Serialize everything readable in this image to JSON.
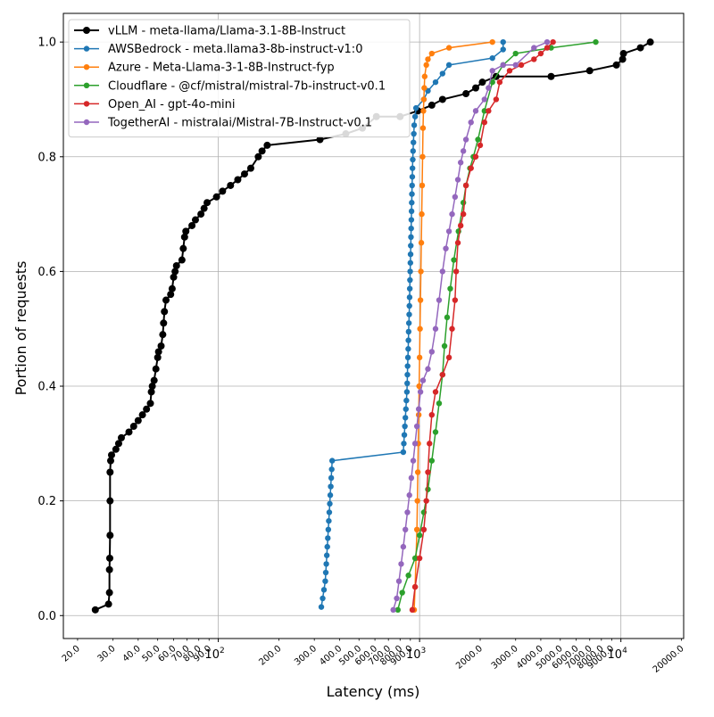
{
  "chart_data": {
    "type": "line",
    "title": "",
    "xlabel": "Latency (ms)",
    "ylabel": "Portion of requests",
    "xscale": "log",
    "xlim": [
      17,
      20500
    ],
    "ylim": [
      -0.04,
      1.05
    ],
    "grid": true,
    "legend_position": "top-left",
    "x_ticks_major": [
      {
        "value": 100,
        "label": "10^2"
      },
      {
        "value": 1000,
        "label": "10^3"
      },
      {
        "value": 10000,
        "label": "10^4"
      }
    ],
    "x_ticks_minor": [
      {
        "value": 20,
        "label": "20.0"
      },
      {
        "value": 30,
        "label": "30.0"
      },
      {
        "value": 40,
        "label": "40.0"
      },
      {
        "value": 50,
        "label": "50.0"
      },
      {
        "value": 60,
        "label": "60.0"
      },
      {
        "value": 70,
        "label": "70.0"
      },
      {
        "value": 80,
        "label": "80.0"
      },
      {
        "value": 90,
        "label": "90.0"
      },
      {
        "value": 200,
        "label": "200.0"
      },
      {
        "value": 300,
        "label": "300.0"
      },
      {
        "value": 400,
        "label": "400.0"
      },
      {
        "value": 500,
        "label": "500.0"
      },
      {
        "value": 600,
        "label": "600.0"
      },
      {
        "value": 700,
        "label": "700.0"
      },
      {
        "value": 800,
        "label": "800.0"
      },
      {
        "value": 900,
        "label": "900.0"
      },
      {
        "value": 2000,
        "label": "2000.0"
      },
      {
        "value": 3000,
        "label": "3000.0"
      },
      {
        "value": 4000,
        "label": "4000.0"
      },
      {
        "value": 5000,
        "label": "5000.0"
      },
      {
        "value": 6000,
        "label": "6000.0"
      },
      {
        "value": 7000,
        "label": "7000.0"
      },
      {
        "value": 8000,
        "label": "8000.0"
      },
      {
        "value": 9000,
        "label": "9000.0"
      },
      {
        "value": 20000,
        "label": "20000.0"
      }
    ],
    "y_ticks": [
      {
        "value": 0.0,
        "label": "0.0"
      },
      {
        "value": 0.2,
        "label": "0.2"
      },
      {
        "value": 0.4,
        "label": "0.4"
      },
      {
        "value": 0.6,
        "label": "0.6"
      },
      {
        "value": 0.8,
        "label": "0.8"
      },
      {
        "value": 1.0,
        "label": "1.0"
      }
    ],
    "series": [
      {
        "name": "vLLM - meta-llama/Llama-3.1-8B-Instruct",
        "color": "#000000",
        "style": "thick",
        "points": [
          [
            24.5,
            0.01
          ],
          [
            28.5,
            0.02
          ],
          [
            28.8,
            0.04
          ],
          [
            28.8,
            0.08
          ],
          [
            28.9,
            0.1
          ],
          [
            29,
            0.14
          ],
          [
            29,
            0.2
          ],
          [
            29,
            0.25
          ],
          [
            29.2,
            0.27
          ],
          [
            29.5,
            0.28
          ],
          [
            31,
            0.29
          ],
          [
            32,
            0.3
          ],
          [
            33,
            0.31
          ],
          [
            36,
            0.32
          ],
          [
            38,
            0.33
          ],
          [
            40,
            0.34
          ],
          [
            42,
            0.35
          ],
          [
            44,
            0.36
          ],
          [
            46,
            0.37
          ],
          [
            46.5,
            0.39
          ],
          [
            47,
            0.4
          ],
          [
            48,
            0.41
          ],
          [
            49,
            0.43
          ],
          [
            50,
            0.45
          ],
          [
            50.5,
            0.46
          ],
          [
            52,
            0.47
          ],
          [
            53,
            0.49
          ],
          [
            53.5,
            0.51
          ],
          [
            54,
            0.53
          ],
          [
            55,
            0.55
          ],
          [
            58,
            0.56
          ],
          [
            59,
            0.57
          ],
          [
            60,
            0.59
          ],
          [
            61,
            0.6
          ],
          [
            62,
            0.61
          ],
          [
            66,
            0.62
          ],
          [
            67,
            0.64
          ],
          [
            68,
            0.66
          ],
          [
            69,
            0.67
          ],
          [
            74,
            0.68
          ],
          [
            77,
            0.69
          ],
          [
            82,
            0.7
          ],
          [
            85,
            0.71
          ],
          [
            88,
            0.72
          ],
          [
            98,
            0.73
          ],
          [
            105,
            0.74
          ],
          [
            115,
            0.75
          ],
          [
            125,
            0.76
          ],
          [
            135,
            0.77
          ],
          [
            145,
            0.78
          ],
          [
            158,
            0.8
          ],
          [
            165,
            0.81
          ],
          [
            175,
            0.82
          ],
          [
            320,
            0.83
          ],
          [
            430,
            0.84
          ],
          [
            520,
            0.85
          ],
          [
            610,
            0.87
          ],
          [
            800,
            0.87
          ],
          [
            980,
            0.88
          ],
          [
            1150,
            0.89
          ],
          [
            1300,
            0.9
          ],
          [
            1700,
            0.91
          ],
          [
            1900,
            0.92
          ],
          [
            2050,
            0.93
          ],
          [
            2400,
            0.94
          ],
          [
            4500,
            0.94
          ],
          [
            7000,
            0.95
          ],
          [
            9500,
            0.96
          ],
          [
            10200,
            0.97
          ],
          [
            10300,
            0.98
          ],
          [
            12500,
            0.99
          ],
          [
            14000,
            1.0
          ]
        ]
      },
      {
        "name": "AWSBedrock - meta.llama3-8b-instruct-v1:0",
        "color": "#1f77b4",
        "style": "normal",
        "points": [
          [
            325,
            0.015
          ],
          [
            330,
            0.03
          ],
          [
            335,
            0.045
          ],
          [
            340,
            0.06
          ],
          [
            342,
            0.075
          ],
          [
            344,
            0.09
          ],
          [
            346,
            0.105
          ],
          [
            348,
            0.12
          ],
          [
            350,
            0.135
          ],
          [
            352,
            0.15
          ],
          [
            354,
            0.165
          ],
          [
            356,
            0.18
          ],
          [
            358,
            0.195
          ],
          [
            360,
            0.21
          ],
          [
            362,
            0.225
          ],
          [
            364,
            0.24
          ],
          [
            366,
            0.255
          ],
          [
            368,
            0.27
          ],
          [
            830,
            0.285
          ],
          [
            835,
            0.3
          ],
          [
            840,
            0.315
          ],
          [
            845,
            0.33
          ],
          [
            850,
            0.345
          ],
          [
            855,
            0.36
          ],
          [
            860,
            0.375
          ],
          [
            865,
            0.39
          ],
          [
            868,
            0.405
          ],
          [
            870,
            0.42
          ],
          [
            872,
            0.435
          ],
          [
            875,
            0.45
          ],
          [
            878,
            0.465
          ],
          [
            880,
            0.48
          ],
          [
            882,
            0.495
          ],
          [
            885,
            0.51
          ],
          [
            888,
            0.525
          ],
          [
            890,
            0.54
          ],
          [
            892,
            0.555
          ],
          [
            894,
            0.57
          ],
          [
            896,
            0.585
          ],
          [
            898,
            0.6
          ],
          [
            900,
            0.615
          ],
          [
            902,
            0.63
          ],
          [
            904,
            0.645
          ],
          [
            906,
            0.66
          ],
          [
            908,
            0.675
          ],
          [
            910,
            0.69
          ],
          [
            912,
            0.705
          ],
          [
            914,
            0.72
          ],
          [
            916,
            0.735
          ],
          [
            918,
            0.75
          ],
          [
            920,
            0.765
          ],
          [
            922,
            0.78
          ],
          [
            925,
            0.795
          ],
          [
            928,
            0.81
          ],
          [
            932,
            0.825
          ],
          [
            936,
            0.84
          ],
          [
            940,
            0.855
          ],
          [
            950,
            0.87
          ],
          [
            960,
            0.885
          ],
          [
            1050,
            0.9
          ],
          [
            1100,
            0.915
          ],
          [
            1200,
            0.93
          ],
          [
            1300,
            0.945
          ],
          [
            1400,
            0.96
          ],
          [
            2300,
            0.972
          ],
          [
            2600,
            0.987
          ],
          [
            2600,
            1.0
          ]
        ]
      },
      {
        "name": "Azure - Meta-Llama-3-1-8B-Instruct-fyp",
        "color": "#ff7f0e",
        "style": "normal",
        "points": [
          [
            940,
            0.01
          ],
          [
            950,
            0.05
          ],
          [
            960,
            0.1
          ],
          [
            970,
            0.15
          ],
          [
            975,
            0.2
          ],
          [
            980,
            0.25
          ],
          [
            985,
            0.3
          ],
          [
            990,
            0.35
          ],
          [
            995,
            0.4
          ],
          [
            1000,
            0.45
          ],
          [
            1005,
            0.5
          ],
          [
            1010,
            0.55
          ],
          [
            1015,
            0.6
          ],
          [
            1020,
            0.65
          ],
          [
            1025,
            0.7
          ],
          [
            1030,
            0.75
          ],
          [
            1035,
            0.8
          ],
          [
            1040,
            0.85
          ],
          [
            1045,
            0.88
          ],
          [
            1050,
            0.9
          ],
          [
            1055,
            0.92
          ],
          [
            1060,
            0.94
          ],
          [
            1080,
            0.96
          ],
          [
            1100,
            0.97
          ],
          [
            1150,
            0.98
          ],
          [
            1400,
            0.99
          ],
          [
            2300,
            1.0
          ]
        ]
      },
      {
        "name": "Cloudflare - @cf/mistral/mistral-7b-instruct-v0.1",
        "color": "#2ca02c",
        "style": "normal",
        "points": [
          [
            780,
            0.01
          ],
          [
            820,
            0.04
          ],
          [
            880,
            0.07
          ],
          [
            950,
            0.1
          ],
          [
            1000,
            0.14
          ],
          [
            1050,
            0.18
          ],
          [
            1100,
            0.22
          ],
          [
            1150,
            0.27
          ],
          [
            1200,
            0.32
          ],
          [
            1250,
            0.37
          ],
          [
            1300,
            0.42
          ],
          [
            1330,
            0.47
          ],
          [
            1370,
            0.52
          ],
          [
            1420,
            0.57
          ],
          [
            1480,
            0.62
          ],
          [
            1560,
            0.67
          ],
          [
            1650,
            0.72
          ],
          [
            1700,
            0.75
          ],
          [
            1780,
            0.78
          ],
          [
            1850,
            0.8
          ],
          [
            1950,
            0.83
          ],
          [
            2100,
            0.88
          ],
          [
            2300,
            0.93
          ],
          [
            2600,
            0.96
          ],
          [
            3000,
            0.98
          ],
          [
            4500,
            0.99
          ],
          [
            7500,
            1.0
          ]
        ]
      },
      {
        "name": "Open_AI - gpt-4o-mini",
        "color": "#d62728",
        "style": "normal",
        "points": [
          [
            920,
            0.01
          ],
          [
            950,
            0.05
          ],
          [
            1000,
            0.1
          ],
          [
            1050,
            0.15
          ],
          [
            1080,
            0.2
          ],
          [
            1100,
            0.25
          ],
          [
            1120,
            0.3
          ],
          [
            1150,
            0.35
          ],
          [
            1200,
            0.39
          ],
          [
            1300,
            0.42
          ],
          [
            1400,
            0.45
          ],
          [
            1450,
            0.5
          ],
          [
            1500,
            0.55
          ],
          [
            1520,
            0.6
          ],
          [
            1550,
            0.65
          ],
          [
            1600,
            0.68
          ],
          [
            1650,
            0.7
          ],
          [
            1700,
            0.75
          ],
          [
            1800,
            0.78
          ],
          [
            1900,
            0.8
          ],
          [
            2000,
            0.82
          ],
          [
            2100,
            0.86
          ],
          [
            2200,
            0.88
          ],
          [
            2400,
            0.9
          ],
          [
            2500,
            0.93
          ],
          [
            2800,
            0.95
          ],
          [
            3200,
            0.96
          ],
          [
            3700,
            0.97
          ],
          [
            4000,
            0.98
          ],
          [
            4300,
            0.99
          ],
          [
            4600,
            1.0
          ]
        ]
      },
      {
        "name": "TogetherAI - mistralai/Mistral-7B-Instruct-v0.1",
        "color": "#9467bd",
        "style": "normal",
        "points": [
          [
            740,
            0.01
          ],
          [
            770,
            0.03
          ],
          [
            790,
            0.06
          ],
          [
            810,
            0.09
          ],
          [
            830,
            0.12
          ],
          [
            850,
            0.15
          ],
          [
            870,
            0.18
          ],
          [
            890,
            0.21
          ],
          [
            910,
            0.24
          ],
          [
            930,
            0.27
          ],
          [
            950,
            0.3
          ],
          [
            970,
            0.33
          ],
          [
            990,
            0.36
          ],
          [
            1010,
            0.39
          ],
          [
            1040,
            0.41
          ],
          [
            1100,
            0.43
          ],
          [
            1150,
            0.46
          ],
          [
            1200,
            0.5
          ],
          [
            1250,
            0.55
          ],
          [
            1300,
            0.6
          ],
          [
            1350,
            0.64
          ],
          [
            1400,
            0.67
          ],
          [
            1450,
            0.7
          ],
          [
            1500,
            0.73
          ],
          [
            1550,
            0.76
          ],
          [
            1600,
            0.79
          ],
          [
            1650,
            0.81
          ],
          [
            1700,
            0.83
          ],
          [
            1800,
            0.86
          ],
          [
            1900,
            0.88
          ],
          [
            2100,
            0.9
          ],
          [
            2200,
            0.92
          ],
          [
            2300,
            0.95
          ],
          [
            2600,
            0.96
          ],
          [
            3000,
            0.96
          ],
          [
            3700,
            0.99
          ],
          [
            4300,
            1.0
          ]
        ]
      }
    ]
  }
}
